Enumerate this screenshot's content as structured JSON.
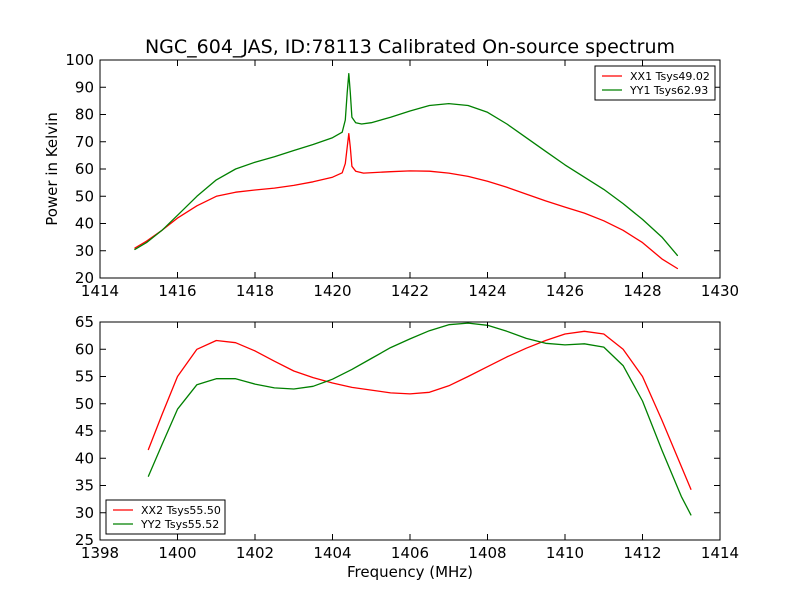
{
  "chart_data": [
    {
      "type": "line",
      "title": "NGC_604_JAS, ID:78113 Calibrated On-source spectrum",
      "xlabel": "",
      "ylabel": "Power in Kelvin",
      "xlim": [
        1414,
        1430
      ],
      "ylim": [
        20,
        100
      ],
      "xticks": [
        "1414",
        "1416",
        "1418",
        "1420",
        "1422",
        "1424",
        "1426",
        "1428",
        "1430"
      ],
      "yticks": [
        "20",
        "30",
        "40",
        "50",
        "60",
        "70",
        "80",
        "90",
        "100"
      ],
      "legend_position": "top-right",
      "series": [
        {
          "name": "XX1 Tsys49.02",
          "color": "#ff0000",
          "points": [
            [
              1414.9,
              31
            ],
            [
              1415.2,
              33.5
            ],
            [
              1415.6,
              37.5
            ],
            [
              1416.0,
              42
            ],
            [
              1416.5,
              46.5
            ],
            [
              1417.0,
              50
            ],
            [
              1417.5,
              51.5
            ],
            [
              1418.0,
              52.3
            ],
            [
              1418.5,
              53
            ],
            [
              1419.0,
              54
            ],
            [
              1419.5,
              55.3
            ],
            [
              1420.0,
              57
            ],
            [
              1420.25,
              58.6
            ],
            [
              1420.33,
              62
            ],
            [
              1420.38,
              68
            ],
            [
              1420.42,
              73
            ],
            [
              1420.46,
              68
            ],
            [
              1420.5,
              61
            ],
            [
              1420.6,
              59.2
            ],
            [
              1420.8,
              58.5
            ],
            [
              1421.5,
              59
            ],
            [
              1422.0,
              59.3
            ],
            [
              1422.5,
              59.2
            ],
            [
              1423.0,
              58.5
            ],
            [
              1423.5,
              57.3
            ],
            [
              1424.0,
              55.5
            ],
            [
              1424.5,
              53.3
            ],
            [
              1425.0,
              50.8
            ],
            [
              1425.5,
              48.3
            ],
            [
              1426.0,
              46
            ],
            [
              1426.5,
              43.8
            ],
            [
              1427.0,
              41
            ],
            [
              1427.5,
              37.5
            ],
            [
              1428.0,
              33
            ],
            [
              1428.5,
              27
            ],
            [
              1428.9,
              23.5
            ]
          ]
        },
        {
          "name": "YY1 Tsys62.93",
          "color": "#008000",
          "points": [
            [
              1414.9,
              30.5
            ],
            [
              1415.2,
              33
            ],
            [
              1415.6,
              37.5
            ],
            [
              1416.0,
              43
            ],
            [
              1416.5,
              50
            ],
            [
              1417.0,
              56
            ],
            [
              1417.5,
              60
            ],
            [
              1418.0,
              62.5
            ],
            [
              1418.5,
              64.5
            ],
            [
              1419.0,
              66.8
            ],
            [
              1419.5,
              69
            ],
            [
              1420.0,
              71.5
            ],
            [
              1420.25,
              73.5
            ],
            [
              1420.33,
              78
            ],
            [
              1420.38,
              88
            ],
            [
              1420.42,
              95
            ],
            [
              1420.46,
              88
            ],
            [
              1420.5,
              79
            ],
            [
              1420.6,
              77
            ],
            [
              1420.75,
              76.5
            ],
            [
              1421.0,
              77
            ],
            [
              1421.5,
              79
            ],
            [
              1422.0,
              81.3
            ],
            [
              1422.5,
              83.3
            ],
            [
              1423.0,
              84
            ],
            [
              1423.5,
              83.3
            ],
            [
              1424.0,
              80.8
            ],
            [
              1424.5,
              76.5
            ],
            [
              1425.0,
              71.5
            ],
            [
              1425.5,
              66.5
            ],
            [
              1426.0,
              61.5
            ],
            [
              1426.5,
              57
            ],
            [
              1427.0,
              52.5
            ],
            [
              1427.5,
              47.3
            ],
            [
              1428.0,
              41.5
            ],
            [
              1428.5,
              35
            ],
            [
              1428.9,
              28.3
            ]
          ]
        }
      ]
    },
    {
      "type": "line",
      "title": "",
      "xlabel": "Frequency (MHz)",
      "ylabel": "",
      "xlim": [
        1398,
        1414
      ],
      "ylim": [
        25,
        65
      ],
      "xticks": [
        "1398",
        "1400",
        "1402",
        "1404",
        "1406",
        "1408",
        "1410",
        "1412",
        "1414"
      ],
      "yticks": [
        "25",
        "30",
        "35",
        "40",
        "45",
        "50",
        "55",
        "60",
        "65"
      ],
      "legend_position": "bottom-left",
      "series": [
        {
          "name": "XX2 Tsys55.50",
          "color": "#ff0000",
          "points": [
            [
              1399.25,
              41.6
            ],
            [
              1399.6,
              48
            ],
            [
              1400.0,
              55
            ],
            [
              1400.5,
              60
            ],
            [
              1401.0,
              61.6
            ],
            [
              1401.5,
              61.2
            ],
            [
              1402.0,
              59.7
            ],
            [
              1402.5,
              57.8
            ],
            [
              1403.0,
              56
            ],
            [
              1403.5,
              54.8
            ],
            [
              1404.0,
              53.8
            ],
            [
              1404.5,
              53
            ],
            [
              1405.0,
              52.5
            ],
            [
              1405.5,
              52
            ],
            [
              1406.0,
              51.8
            ],
            [
              1406.5,
              52.1
            ],
            [
              1407.0,
              53.3
            ],
            [
              1407.5,
              55
            ],
            [
              1408.0,
              56.8
            ],
            [
              1408.5,
              58.6
            ],
            [
              1409.0,
              60.2
            ],
            [
              1409.5,
              61.6
            ],
            [
              1410.0,
              62.8
            ],
            [
              1410.5,
              63.3
            ],
            [
              1411.0,
              62.8
            ],
            [
              1411.5,
              60
            ],
            [
              1412.0,
              55
            ],
            [
              1412.5,
              47
            ],
            [
              1413.0,
              38.5
            ],
            [
              1413.25,
              34.3
            ]
          ]
        },
        {
          "name": "YY2 Tsys55.52",
          "color": "#008000",
          "points": [
            [
              1399.25,
              36.7
            ],
            [
              1399.6,
              42.5
            ],
            [
              1400.0,
              49
            ],
            [
              1400.5,
              53.5
            ],
            [
              1401.0,
              54.6
            ],
            [
              1401.5,
              54.6
            ],
            [
              1402.0,
              53.6
            ],
            [
              1402.5,
              52.9
            ],
            [
              1403.0,
              52.7
            ],
            [
              1403.5,
              53.2
            ],
            [
              1404.0,
              54.5
            ],
            [
              1404.5,
              56.3
            ],
            [
              1405.0,
              58.3
            ],
            [
              1405.5,
              60.3
            ],
            [
              1406.0,
              61.9
            ],
            [
              1406.5,
              63.4
            ],
            [
              1407.0,
              64.5
            ],
            [
              1407.5,
              64.8
            ],
            [
              1408.0,
              64.4
            ],
            [
              1408.5,
              63.3
            ],
            [
              1409.0,
              62
            ],
            [
              1409.5,
              61.1
            ],
            [
              1410.0,
              60.8
            ],
            [
              1410.5,
              61
            ],
            [
              1411.0,
              60.4
            ],
            [
              1411.5,
              57
            ],
            [
              1412.0,
              50.5
            ],
            [
              1412.5,
              41.5
            ],
            [
              1413.0,
              33
            ],
            [
              1413.25,
              29.6
            ]
          ]
        }
      ]
    }
  ]
}
